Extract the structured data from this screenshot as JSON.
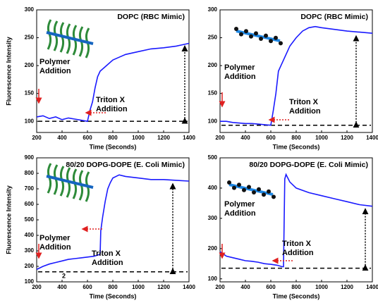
{
  "chart_data": [
    {
      "type": "line",
      "title": "DOPC (RBC Mimic)",
      "x_label": "Time (Seconds)",
      "y_label": "Fluorescence Intensity",
      "x": [
        200,
        250,
        300,
        350,
        400,
        450,
        500,
        550,
        600,
        620,
        640,
        660,
        680,
        700,
        750,
        800,
        850,
        900,
        1000,
        1100,
        1200,
        1300,
        1400
      ],
      "values": [
        108,
        110,
        105,
        108,
        103,
        106,
        104,
        102,
        100,
        120,
        135,
        160,
        180,
        190,
        200,
        210,
        215,
        220,
        225,
        230,
        232,
        235,
        240
      ],
      "color": "#1a1aff",
      "reference_line": 100,
      "xlim": [
        200,
        1400
      ],
      "xticks": [
        200,
        400,
        600,
        800,
        1000,
        1200,
        1400
      ],
      "ylim": [
        80,
        300
      ],
      "yticks": [
        100,
        150,
        200,
        250,
        300
      ],
      "annotations": [
        [
          "Polymer",
          "Addition"
        ],
        [
          "Triton X",
          "Addition"
        ]
      ]
    },
    {
      "type": "line",
      "title": "DOPC (RBC Mimic)",
      "x_label": "Time (Seconds)",
      "x": [
        200,
        250,
        300,
        350,
        400,
        450,
        500,
        550,
        600,
        620,
        640,
        660,
        680,
        700,
        750,
        800,
        850,
        900,
        950,
        1000,
        1100,
        1200,
        1300,
        1400
      ],
      "values": [
        100,
        100,
        98,
        97,
        96,
        96,
        95,
        94,
        93,
        120,
        150,
        190,
        200,
        210,
        235,
        250,
        262,
        268,
        270,
        268,
        265,
        262,
        260,
        258
      ],
      "color": "#1a1aff",
      "reference_line": 93,
      "xlim": [
        200,
        1400
      ],
      "xticks": [
        200,
        400,
        600,
        800,
        1000,
        1200,
        1400
      ],
      "ylim": [
        80,
        300
      ],
      "yticks": [
        100,
        150,
        200,
        250,
        300
      ],
      "annotations": [
        [
          "Polymer",
          "Addition"
        ],
        [
          "Triton X",
          "Addition"
        ]
      ]
    },
    {
      "type": "line",
      "title": "80/20 DOPG-DOPE (E. Coli Mimic)",
      "x_label": "Time (Seconds)",
      "y_label": "Fluorescence Intensity",
      "x": [
        200,
        250,
        300,
        350,
        400,
        450,
        500,
        550,
        600,
        650,
        690,
        700,
        705,
        720,
        740,
        760,
        780,
        800,
        850,
        900,
        1000,
        1100,
        1200,
        1300,
        1400
      ],
      "values": [
        180,
        200,
        215,
        225,
        235,
        245,
        250,
        255,
        260,
        265,
        275,
        280,
        430,
        520,
        620,
        700,
        740,
        770,
        790,
        780,
        770,
        760,
        760,
        755,
        750
      ],
      "color": "#1a1aff",
      "reference_line": 165,
      "xlim": [
        200,
        1400
      ],
      "xticks": [
        200,
        400,
        600,
        800,
        1000,
        1200,
        1400
      ],
      "ylim": [
        100,
        900
      ],
      "yticks": [
        100,
        200,
        300,
        400,
        500,
        600,
        700,
        800,
        900
      ],
      "annotations": [
        [
          "Polymer",
          "Addition"
        ],
        [
          "Triton X",
          "Addition"
        ]
      ],
      "note": "2"
    },
    {
      "type": "line",
      "title": "80/20 DOPG-DOPE (E. Coli Mimic)",
      "x_label": "Time (Seconds)",
      "x": [
        200,
        250,
        300,
        350,
        400,
        450,
        500,
        550,
        600,
        650,
        690,
        700,
        710,
        720,
        750,
        800,
        900,
        1000,
        1100,
        1200,
        1300,
        1400
      ],
      "values": [
        190,
        175,
        170,
        165,
        160,
        158,
        155,
        150,
        148,
        145,
        140,
        140,
        430,
        445,
        420,
        400,
        385,
        375,
        365,
        355,
        345,
        340
      ],
      "color": "#1a1aff",
      "reference_line": 135,
      "xlim": [
        200,
        1400
      ],
      "xticks": [
        200,
        400,
        600,
        800,
        1000,
        1200,
        1400
      ],
      "ylim": [
        90,
        500
      ],
      "yticks": [
        100,
        200,
        300,
        400,
        500
      ],
      "annotations": [
        [
          "Polymer",
          "Addition"
        ],
        [
          "Triton X",
          "Addition"
        ]
      ]
    }
  ]
}
